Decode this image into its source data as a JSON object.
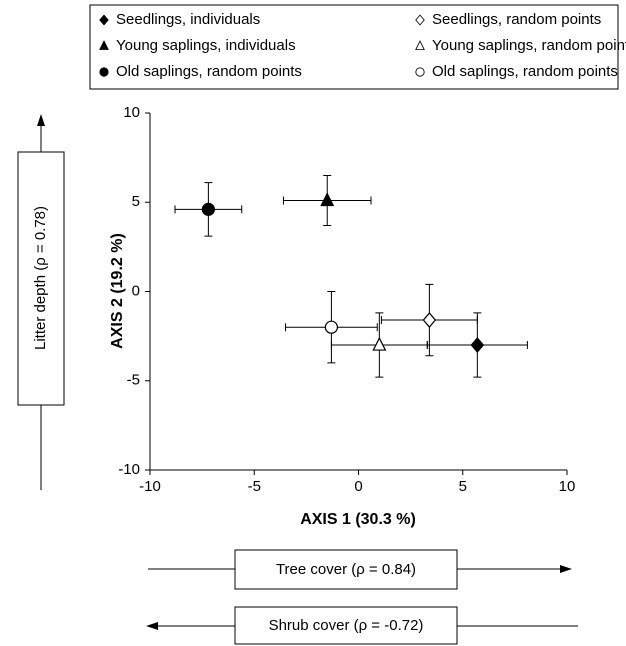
{
  "chart_data": {
    "type": "scatter",
    "xlabel": "AXIS 1 (30.3 %)",
    "ylabel": "AXIS 2 (19.2 %)",
    "annotations": [
      "Litter depth (ρ = 0.78)",
      "Tree cover (ρ = 0.84)",
      "Shrub cover (ρ = -0.72)"
    ],
    "xlim": [
      -10,
      10
    ],
    "ylim": [
      -10,
      10
    ],
    "xticks": [
      -10,
      -5,
      0,
      5,
      10
    ],
    "yticks": [
      -10,
      -5,
      0,
      5,
      10
    ],
    "grid": false,
    "series": [
      {
        "name": "Seedlings, individuals",
        "color": "#000000",
        "marker": "diamond",
        "filled": true,
        "x": [
          5.7
        ],
        "values": [
          -3.0
        ],
        "xerr": [
          2.4
        ],
        "yerr": [
          1.8
        ]
      },
      {
        "name": "Seedlings, random points",
        "color": "#000000",
        "marker": "diamond",
        "filled": false,
        "x": [
          3.4
        ],
        "values": [
          -1.6
        ],
        "xerr": [
          2.3
        ],
        "yerr": [
          2.0
        ]
      },
      {
        "name": "Young saplings, individuals",
        "color": "#000000",
        "marker": "triangle",
        "filled": true,
        "x": [
          -1.5
        ],
        "values": [
          5.1
        ],
        "xerr": [
          2.1
        ],
        "yerr": [
          1.4
        ]
      },
      {
        "name": "Young saplings, random points",
        "color": "#000000",
        "marker": "triangle",
        "filled": false,
        "x": [
          1.0
        ],
        "values": [
          -3.0
        ],
        "xerr": [
          2.3
        ],
        "yerr": [
          1.8
        ]
      },
      {
        "name": "Old saplings, random points",
        "color": "#000000",
        "marker": "circle",
        "filled": true,
        "x": [
          -7.2
        ],
        "values": [
          4.6
        ],
        "xerr": [
          1.6
        ],
        "yerr": [
          1.5
        ]
      },
      {
        "name": "Old saplings, random points",
        "color": "#000000",
        "marker": "circle",
        "filled": false,
        "x": [
          -1.3
        ],
        "values": [
          -2.0
        ],
        "xerr": [
          2.2
        ],
        "yerr": [
          2.0
        ]
      }
    ]
  }
}
